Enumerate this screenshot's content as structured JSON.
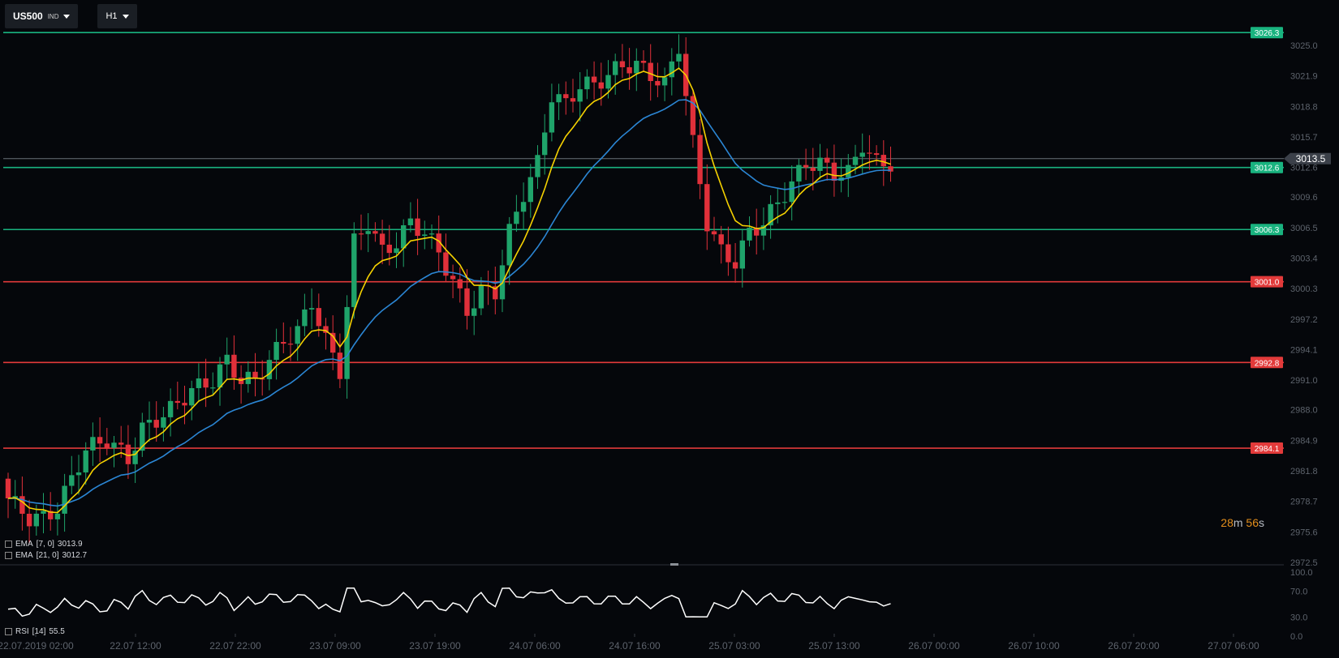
{
  "toolbar": {
    "symbol": "US500",
    "symbol_class": "IND",
    "timeframe": "H1"
  },
  "indicators": {
    "ema7": {
      "label": "EMA",
      "params": "[7, 0]",
      "value": "3013.9",
      "color": "#f5d100"
    },
    "ema21": {
      "label": "EMA",
      "params": "[21, 0]",
      "value": "3012.7",
      "color": "#2b86d4"
    },
    "rsi": {
      "label": "RSI",
      "params": "[14]",
      "value": "55.5"
    }
  },
  "timer": {
    "minutes": "28",
    "m": "m",
    "seconds": "56",
    "s": "s"
  },
  "chart_data": {
    "type": "candlestick",
    "price_axis": {
      "min": 2972.5,
      "max": 3025.0,
      "ticks": [
        "3025.0",
        "3021.9",
        "3018.8",
        "3015.7",
        "3012.6",
        "3009.6",
        "3006.5",
        "3003.4",
        "3000.3",
        "2997.2",
        "2994.1",
        "2991.0",
        "2988.0",
        "2984.9",
        "2981.8",
        "2978.7",
        "2975.6",
        "2972.5"
      ]
    },
    "current_price": "3013.5",
    "levels": [
      {
        "price": 3026.3,
        "label": "3026.3",
        "color": "#19b37f"
      },
      {
        "price": 3012.6,
        "label": "3012.6",
        "color": "#19b37f"
      },
      {
        "price": 3006.3,
        "label": "3006.3",
        "color": "#19b37f"
      },
      {
        "price": 3001.0,
        "label": "3001.0",
        "color": "#e23a3a"
      },
      {
        "price": 2992.8,
        "label": "2992.8",
        "color": "#e23a3a"
      },
      {
        "price": 2984.1,
        "label": "2984.1",
        "color": "#e23a3a"
      }
    ],
    "time_labels": [
      "22.07.2019  02:00",
      "22.07  12:00",
      "22.07  22:00",
      "23.07  09:00",
      "23.07  19:00",
      "24.07  06:00",
      "24.07  16:00",
      "25.07  03:00",
      "25.07  13:00",
      "26.07  00:00",
      "26.07  10:00",
      "26.07  20:00",
      "27.07  06:00"
    ],
    "rsi_axis": {
      "min": 0,
      "max": 100,
      "ticks": [
        "100.0",
        "70.0",
        "30.0",
        "0.0"
      ]
    },
    "colors": {
      "up": "#1fa36a",
      "down": "#e0303a",
      "ema7": "#f5d100",
      "ema21": "#2b86d4",
      "rsi": "#ffffff"
    }
  }
}
